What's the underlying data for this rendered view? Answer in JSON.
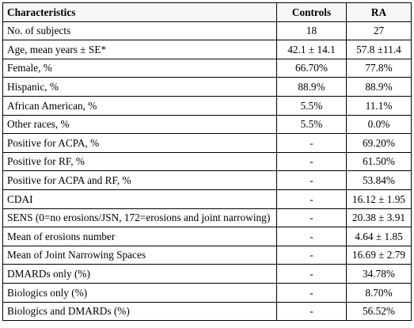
{
  "table": {
    "headers": [
      "Characteristics",
      "Controls",
      "RA"
    ],
    "rows": [
      [
        "No. of subjects",
        "18",
        "27"
      ],
      [
        "Age, mean years ± SE*",
        "42.1 ± 14.1",
        "57.8 ±11.4"
      ],
      [
        "Female, %",
        "66.70%",
        "77.8%"
      ],
      [
        "Hispanic, %",
        "88.9%",
        "88.9%"
      ],
      [
        "African American, %",
        "5.5%",
        "11.1%"
      ],
      [
        "Other races, %",
        "5.5%",
        "0.0%"
      ],
      [
        "Positive for ACPA, %",
        "-",
        "69.20%"
      ],
      [
        "Positive for RF, %",
        "-",
        "61.50%"
      ],
      [
        "Positive for ACPA and RF, %",
        "-",
        "53.84%"
      ],
      [
        "CDAI",
        "-",
        "16.12 ± 1.95"
      ],
      [
        "SENS (0=no erosions/JSN, 172=erosions and joint narrowing)",
        "-",
        "20.38 ± 3.91"
      ],
      [
        "Mean of erosions number",
        "-",
        "4.64 ± 1.85"
      ],
      [
        "Mean of Joint Narrowing Spaces",
        "-",
        "16.69 ± 2.79"
      ],
      [
        "DMARDs only (%)",
        "-",
        "34.78%"
      ],
      [
        "Biologics only (%)",
        "-",
        "8.70%"
      ],
      [
        "Biologics and DMARDs (%)",
        "-",
        "56.52%"
      ]
    ]
  }
}
